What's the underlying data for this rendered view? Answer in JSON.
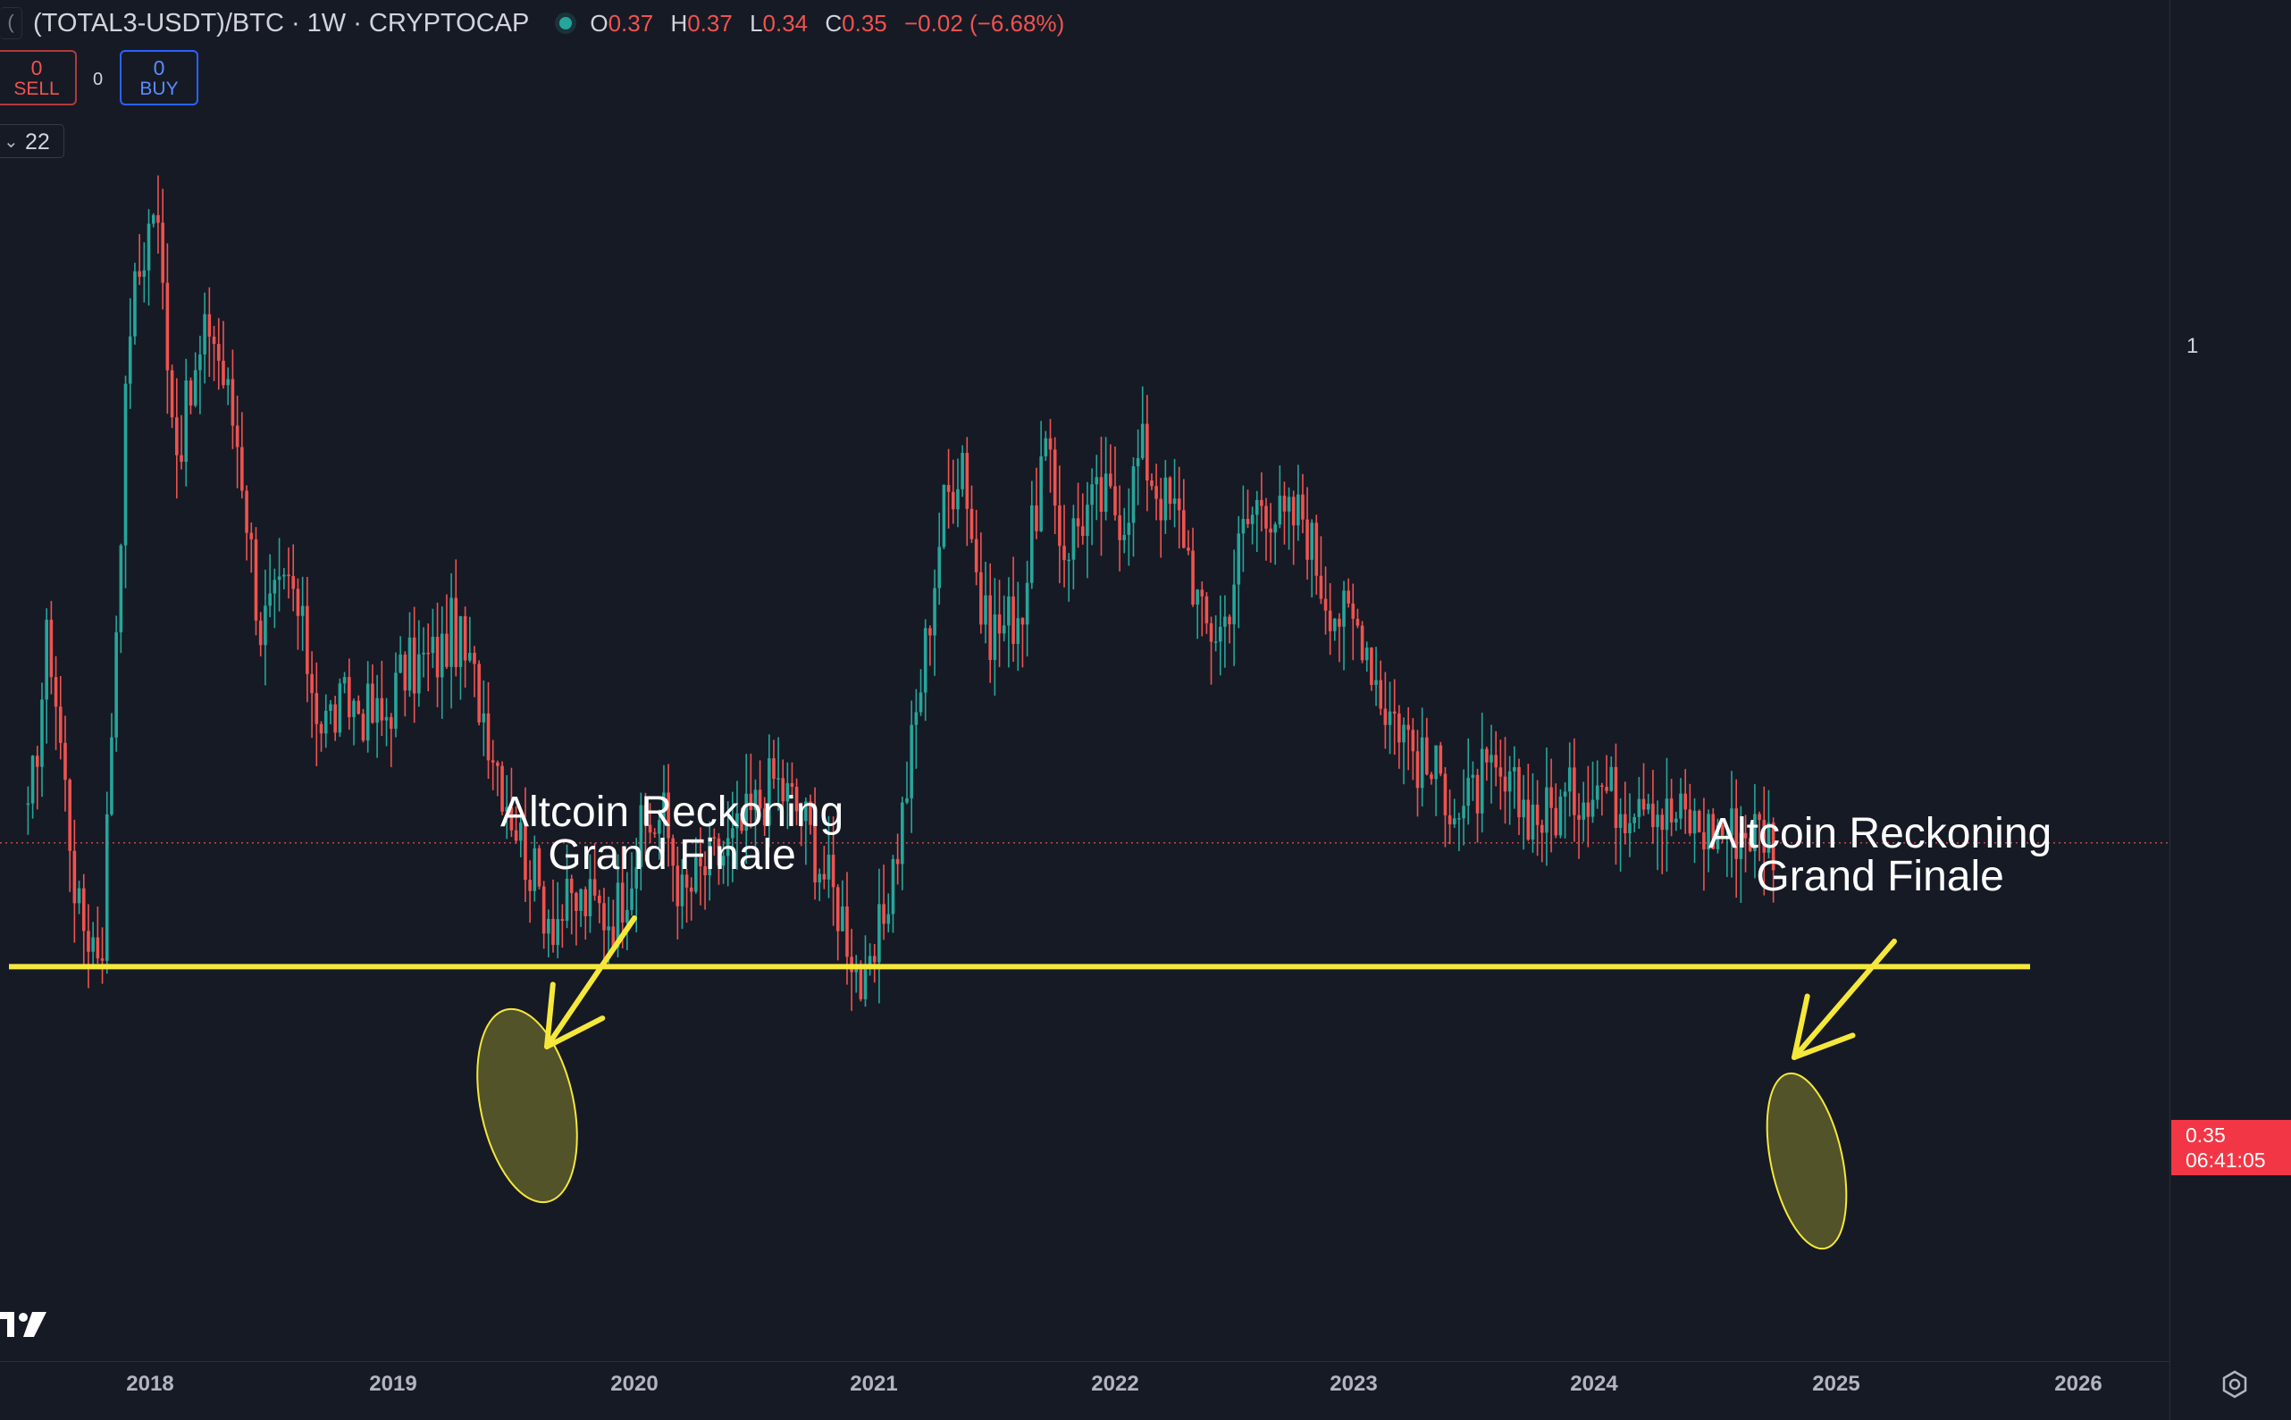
{
  "header": {
    "symbol": "(TOTAL3-USDT)/BTC · 1W · CRYPTOCAP",
    "ohlc": {
      "o_label": "O",
      "o": "0.37",
      "h_label": "H",
      "h": "0.37",
      "l_label": "L",
      "l": "0.34",
      "c_label": "C",
      "c": "0.35",
      "change": "−0.02 (−6.68%)"
    }
  },
  "trade": {
    "sell_value": "0",
    "sell_label": "SELL",
    "spread": "0",
    "buy_value": "0",
    "buy_label": "BUY"
  },
  "indicator": {
    "value": "22"
  },
  "price_axis": {
    "label_1": "1",
    "last_price": "0.35",
    "countdown": "06:41:05"
  },
  "annotations": [
    {
      "text": "Altcoin Reckoning\nGrand Finale"
    },
    {
      "text": "Altcoin Reckoning\nGrand Finale"
    }
  ],
  "colors": {
    "up": "#26a69a",
    "down": "#ef5350",
    "highlight": "#f5e83b",
    "background": "#161a25"
  },
  "chart_data": {
    "type": "candlestick",
    "title": "(TOTAL3-USDT)/BTC · 1W · CRYPTOCAP",
    "scale": "log",
    "x_ticks": [
      "2018",
      "2019",
      "2020",
      "2021",
      "2022",
      "2023",
      "2024",
      "2025",
      "2026"
    ],
    "y_ticks": [
      "1"
    ],
    "last_price": 0.35,
    "support_level": 0.27,
    "series": [
      {
        "values": [
          [
            "2017-07-01",
            0.36
          ],
          [
            "2017-08-01",
            0.55
          ],
          [
            "2017-09-15",
            0.3
          ],
          [
            "2017-10-20",
            0.28
          ],
          [
            "2017-12-01",
            1.05
          ],
          [
            "2018-01-08",
            1.35
          ],
          [
            "2018-02-10",
            0.8
          ],
          [
            "2018-03-15",
            0.95
          ],
          [
            "2018-04-01",
            1.05
          ],
          [
            "2018-05-15",
            0.8
          ],
          [
            "2018-06-15",
            0.55
          ],
          [
            "2018-08-01",
            0.6
          ],
          [
            "2018-09-15",
            0.45
          ],
          [
            "2018-11-01",
            0.47
          ],
          [
            "2018-12-15",
            0.45
          ],
          [
            "2019-01-15",
            0.5
          ],
          [
            "2019-03-15",
            0.52
          ],
          [
            "2019-04-01",
            0.55
          ],
          [
            "2019-05-15",
            0.47
          ],
          [
            "2019-06-15",
            0.4
          ],
          [
            "2019-07-15",
            0.35
          ],
          [
            "2019-08-15",
            0.31
          ],
          [
            "2019-09-01",
            0.3
          ],
          [
            "2019-10-15",
            0.31
          ],
          [
            "2019-12-01",
            0.3
          ],
          [
            "2020-01-15",
            0.36
          ],
          [
            "2020-02-15",
            0.37
          ],
          [
            "2020-03-15",
            0.31
          ],
          [
            "2020-04-15",
            0.33
          ],
          [
            "2020-06-01",
            0.35
          ],
          [
            "2020-08-01",
            0.4
          ],
          [
            "2020-09-15",
            0.37
          ],
          [
            "2020-10-15",
            0.33
          ],
          [
            "2020-11-15",
            0.3
          ],
          [
            "2020-12-20",
            0.25
          ],
          [
            "2021-01-15",
            0.3
          ],
          [
            "2021-02-10",
            0.36
          ],
          [
            "2021-03-15",
            0.5
          ],
          [
            "2021-04-15",
            0.7
          ],
          [
            "2021-05-15",
            0.8
          ],
          [
            "2021-06-15",
            0.55
          ],
          [
            "2021-07-15",
            0.55
          ],
          [
            "2021-08-15",
            0.58
          ],
          [
            "2021-09-15",
            0.8
          ],
          [
            "2021-10-15",
            0.65
          ],
          [
            "2021-11-15",
            0.7
          ],
          [
            "2021-12-15",
            0.72
          ],
          [
            "2022-01-15",
            0.7
          ],
          [
            "2022-02-10",
            0.8
          ],
          [
            "2022-03-15",
            0.72
          ],
          [
            "2022-04-15",
            0.68
          ],
          [
            "2022-05-15",
            0.55
          ],
          [
            "2022-06-15",
            0.55
          ],
          [
            "2022-07-15",
            0.67
          ],
          [
            "2022-08-15",
            0.73
          ],
          [
            "2022-09-15",
            0.68
          ],
          [
            "2022-10-15",
            0.7
          ],
          [
            "2022-11-15",
            0.6
          ],
          [
            "2022-12-15",
            0.56
          ],
          [
            "2023-01-15",
            0.55
          ],
          [
            "2023-02-15",
            0.47
          ],
          [
            "2023-03-15",
            0.45
          ],
          [
            "2023-04-15",
            0.41
          ],
          [
            "2023-05-15",
            0.4
          ],
          [
            "2023-06-15",
            0.37
          ],
          [
            "2023-07-15",
            0.4
          ],
          [
            "2023-08-15",
            0.39
          ],
          [
            "2023-09-15",
            0.38
          ],
          [
            "2023-10-15",
            0.37
          ],
          [
            "2023-11-15",
            0.38
          ],
          [
            "2024-01-01",
            0.4
          ],
          [
            "2024-02-15",
            0.38
          ],
          [
            "2024-03-15",
            0.4
          ],
          [
            "2024-04-15",
            0.37
          ],
          [
            "2024-05-15",
            0.37
          ],
          [
            "2024-06-15",
            0.36
          ],
          [
            "2024-07-15",
            0.36
          ],
          [
            "2024-08-15",
            0.36
          ],
          [
            "2024-09-15",
            0.36
          ],
          [
            "2024-10-01",
            0.35
          ]
        ]
      }
    ]
  }
}
